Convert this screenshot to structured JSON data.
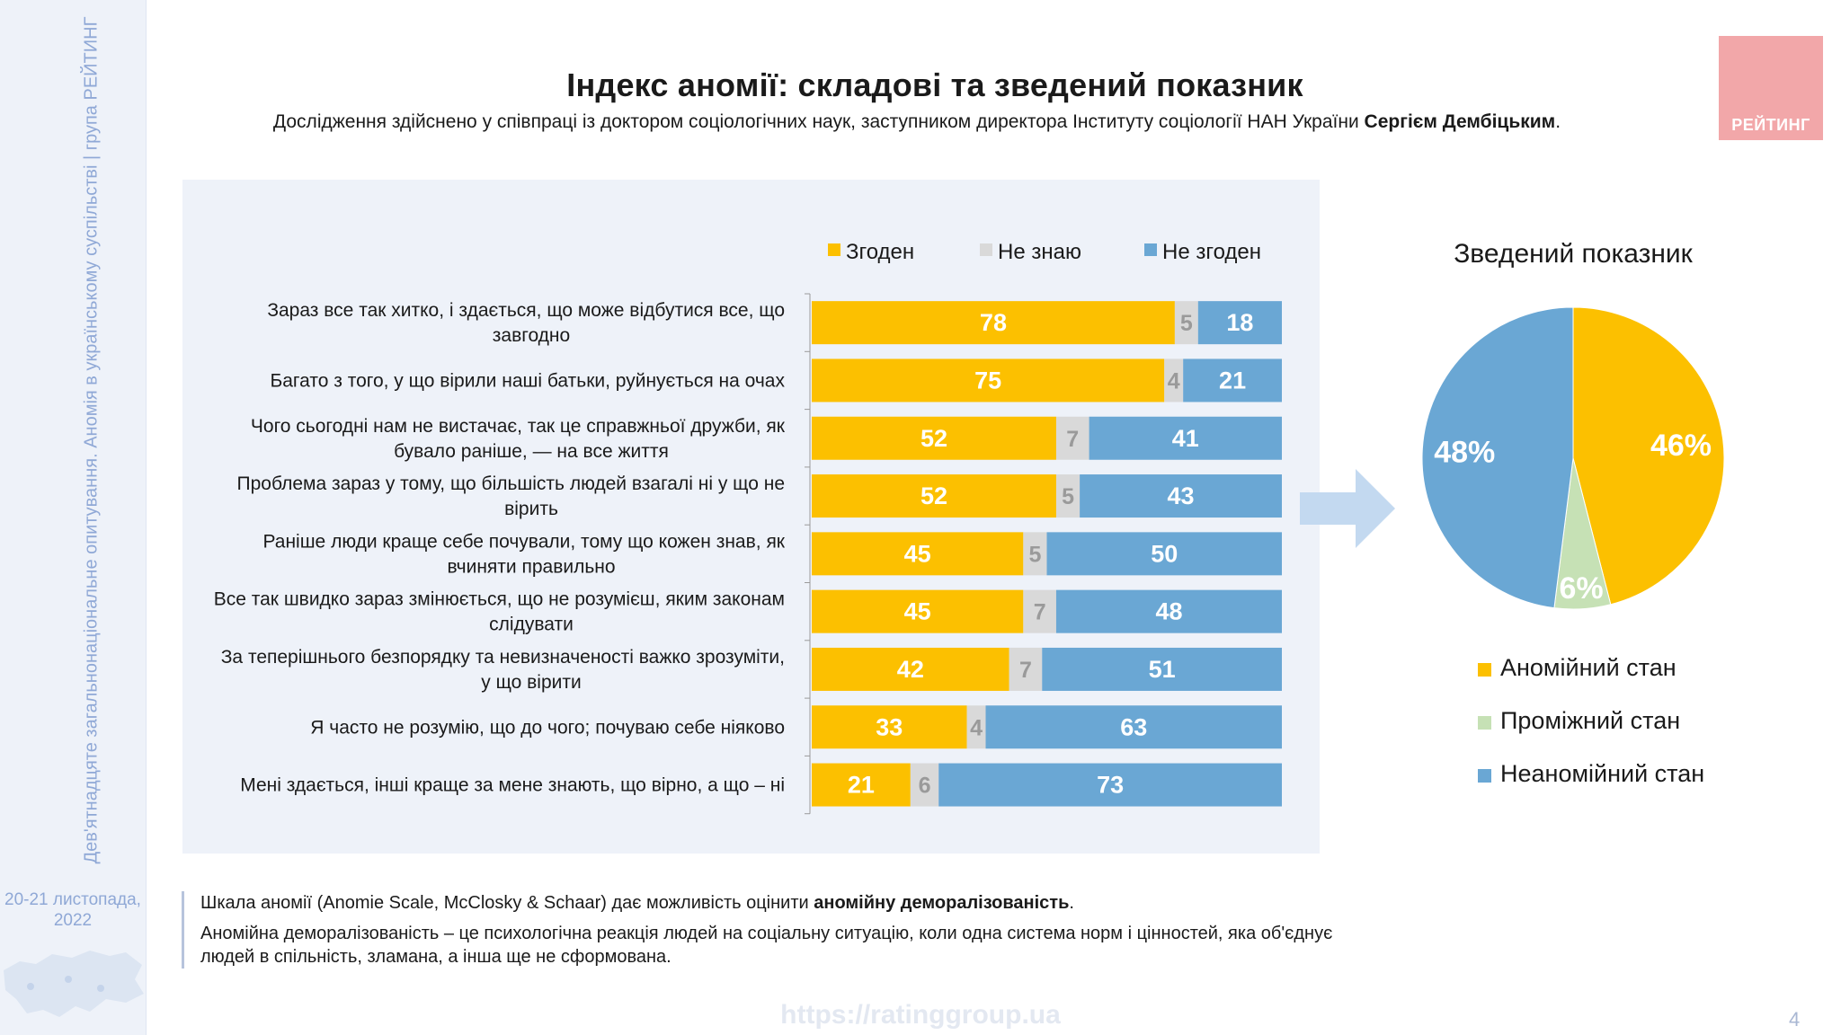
{
  "sidebar": {
    "vertical_text": "Дев'ятнадцяте загальнонаціональне опитування. Аномія в українському суспільстві | група РЕЙТИНГ",
    "date_line1": "20-21 листопада,",
    "date_line2": "2022"
  },
  "header": {
    "title": "Індекс аномії: складові та зведений показник",
    "subtitle_prefix": "Дослідження здійснено у співпраці із доктором соціологічних наук, заступником директора Інституту соціології НАН України ",
    "subtitle_name": "Сергієм Дембіцьким",
    "subtitle_suffix": "."
  },
  "logo": {
    "text": "РЕЙТИНГ",
    "color": "#f2a7a9"
  },
  "colors": {
    "agree": "#fcc000",
    "dontknow": "#d9d9d9",
    "disagree": "#6aa7d4",
    "pie_intermediate": "#c6e1b5",
    "panel": "#eef2f9",
    "arrow": "#c3d9f0"
  },
  "chart_data": [
    {
      "type": "bar",
      "orientation": "horizontal",
      "stacked": true,
      "legend_position": "top",
      "legend": [
        "Згоден",
        "Не знаю",
        "Не згоден"
      ],
      "categories": [
        [
          "Зараз все так хитко, і здається, що може відбутися все, що",
          "завгодно"
        ],
        [
          "Багато з того, у що вірили наші батьки, руйнується на очах"
        ],
        [
          "Чого сьогодні нам не вистачає, так це справжньої дружби, як",
          "бувало раніше, — на все життя"
        ],
        [
          "Проблема зараз у тому, що більшість людей взагалі ні у що не",
          "вірить"
        ],
        [
          "Раніше люди краще себе почували, тому що кожен знав, як",
          "вчиняти правильно"
        ],
        [
          "Все так швидко зараз змінюється, що не розумієш, яким законам",
          "слідувати"
        ],
        [
          "За теперішнього безпорядку та невизначеності важко зрозуміти,",
          "у що вірити"
        ],
        [
          "Я часто не розумію, що до чого; почуваю себе ніяково"
        ],
        [
          "Мені здається, інші краще за мене знають, що вірно, а що – ні"
        ]
      ],
      "series": [
        {
          "name": "Згоден",
          "values": [
            78,
            75,
            52,
            52,
            45,
            45,
            42,
            33,
            21
          ]
        },
        {
          "name": "Не знаю",
          "values": [
            5,
            4,
            7,
            5,
            5,
            7,
            7,
            4,
            6
          ]
        },
        {
          "name": "Не згоден",
          "values": [
            18,
            21,
            41,
            43,
            50,
            48,
            51,
            63,
            73
          ]
        }
      ]
    },
    {
      "type": "pie",
      "title": "Зведений показник",
      "legend_position": "bottom",
      "slices": [
        {
          "name": "Аномійний стан",
          "value": 46,
          "label": "46%"
        },
        {
          "name": "Проміжний стан",
          "value": 6,
          "label": "6%"
        },
        {
          "name": "Неаномійний стан",
          "value": 48,
          "label": "48%"
        }
      ]
    }
  ],
  "note": {
    "line1_prefix": "Шкала аномії (Anomie Scale, McClosky & Schaar) дає можливість оцінити ",
    "line1_bold": "аномійну деморалізованість",
    "line1_suffix": ".",
    "line2": "Аномійна деморалізованість – це психологічна реакція людей на соціальну ситуацію, коли одна система норм і цінностей, яка об'єднує людей в спільність, зламана, а інша ще не сформована."
  },
  "footer": {
    "website": "https://ratinggroup.ua",
    "page_number": "4"
  }
}
